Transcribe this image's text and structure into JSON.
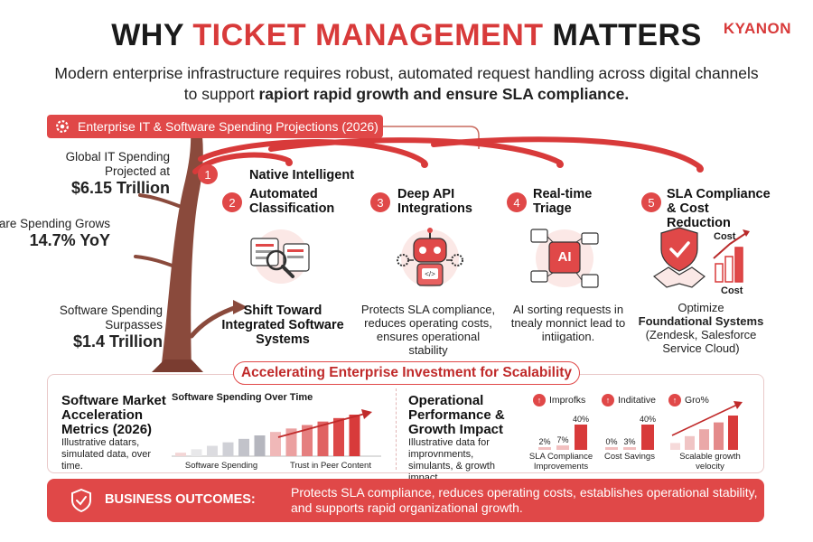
{
  "header": {
    "title_part1": "WHY ",
    "title_part2": "TICKET MANAGEMENT",
    "title_part3": " MATTERS",
    "logo": "KYANON",
    "subtitle_plain": "Modern enterprise infrastructure requires robust, automated request handling across digital channels to support ",
    "subtitle_bold": "rapiort rapid growth and ensure SLA compliance."
  },
  "projections_banner": "Enterprise IT & Software Spending Projections (2026)",
  "left_stats": [
    {
      "label": "Global IT Spending Projected at",
      "value": "$6.15 Trillion"
    },
    {
      "label": "Software Spending Grows",
      "value": "14.7% YoY"
    },
    {
      "label": "Software Spending Surpasses",
      "value": "$1.4 Trillion"
    }
  ],
  "features": [
    {
      "num": "1",
      "title": "Native Intelligent"
    },
    {
      "num": "2",
      "title": "Automated Classification",
      "text": "Shift Toward Integrated Software Systems"
    },
    {
      "num": "3",
      "title": "Deep API Integrations",
      "text": "Protects SLA compliance, reduces operating costs, ensures operational stability"
    },
    {
      "num": "4",
      "title": "Real-time Triage",
      "text": "AI sorting requests in tnealy monnict lead to intiigation."
    },
    {
      "num": "5",
      "title": "SLA Compliance & Cost Reduction",
      "text_plain": "Optimize",
      "text_bold": "Foundational Systems",
      "text_plain2": "(Zendesk, Salesforce Service Cloud)"
    }
  ],
  "icons": {
    "triage_ai": "AI",
    "sla_cost_top": "Cost",
    "sla_cost_bottom": "Cost"
  },
  "mid_banner": "Accelerating Enterprise Investment for Scalability",
  "market_panel": {
    "title": "Software Market Acceleration Metrics (2026)",
    "subtitle": "Illustrative datars, simulated data, over time.",
    "chart_title": "Software Spending Over Time",
    "x_label_left": "Software Spending",
    "x_label_right": "Trust in Peer Content"
  },
  "ops_panel": {
    "title": "Operational Performance & Growth Impact",
    "subtitle": "Illustrative data for improvnments, simulants, & growth impact.",
    "mini_charts": [
      {
        "badge": "Improfks",
        "values": [
          "2%",
          "7%",
          "40%"
        ],
        "label": "SLA Compliance Improvements"
      },
      {
        "badge": "Inditative",
        "values": [
          "0%",
          "3%",
          "40%"
        ],
        "label": "Cost Savings"
      },
      {
        "badge": "Gro%",
        "values": [],
        "label": "Scalable growth velocity"
      }
    ]
  },
  "chart_data": [
    {
      "type": "bar",
      "title": "Software Spending Over Time",
      "series": [
        {
          "values": [
            1,
            2,
            3,
            4,
            5,
            6,
            7,
            8,
            9,
            10,
            11,
            12
          ]
        }
      ]
    },
    {
      "type": "bar",
      "title": "SLA Compliance Improvements",
      "categories": [
        "",
        "",
        ""
      ],
      "values": [
        2,
        7,
        40
      ]
    },
    {
      "type": "bar",
      "title": "Cost Savings",
      "categories": [
        "",
        "",
        ""
      ],
      "values": [
        0,
        3,
        40
      ]
    },
    {
      "type": "bar",
      "title": "Scalable growth velocity",
      "values": [
        1,
        2,
        3,
        4,
        5
      ]
    }
  ],
  "outcomes": {
    "label": "BUSINESS OUTCOMES:",
    "text": "Protects SLA compliance, reduces operating costs, establishes operational stability, and supports rapid organizational growth."
  },
  "colors": {
    "accent": "#e04848",
    "dark_red": "#b92a2a",
    "tree_brown": "#8a4a3c"
  }
}
